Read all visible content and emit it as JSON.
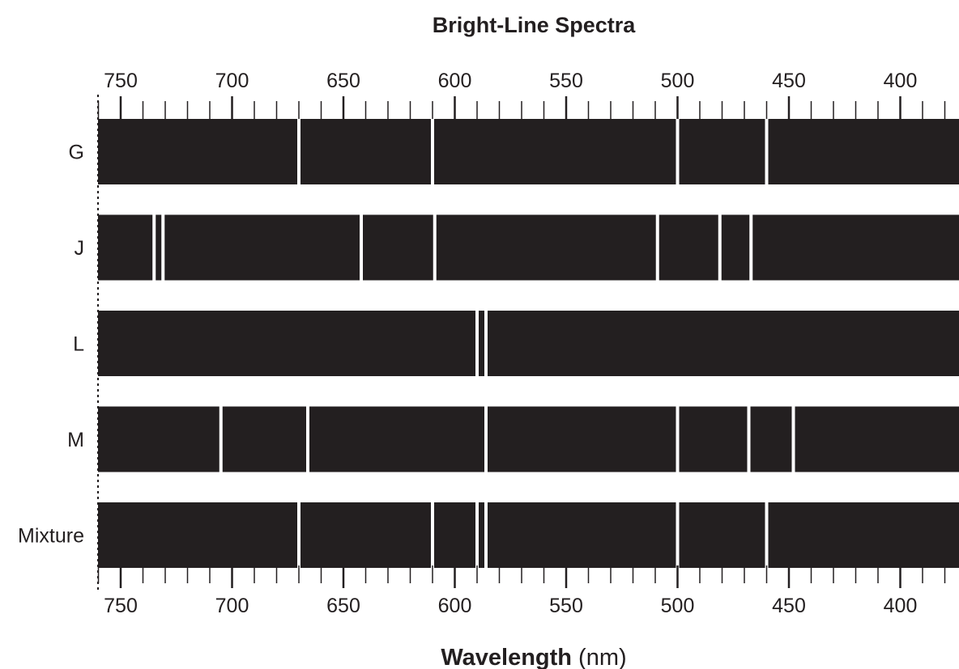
{
  "title": "Bright-Line Spectra",
  "x_axis": {
    "label_bold": "Wavelength",
    "label_unit": " (nm)",
    "major_ticks": [
      750,
      700,
      650,
      600,
      550,
      500,
      450,
      400
    ],
    "minor_tick_step": 10,
    "range": [
      760,
      375
    ],
    "reversed": true
  },
  "spectra": [
    {
      "name": "G",
      "lines": [
        670,
        610,
        500,
        460
      ]
    },
    {
      "name": "J",
      "lines": [
        735,
        731,
        642,
        609,
        509,
        481,
        467
      ]
    },
    {
      "name": "L",
      "lines": [
        590,
        586
      ]
    },
    {
      "name": "M",
      "lines": [
        705,
        666,
        586,
        500,
        468,
        448
      ]
    },
    {
      "name": "Mixture",
      "lines": [
        670,
        610,
        590,
        586,
        500,
        460
      ]
    }
  ],
  "colors": {
    "band": "#231f20",
    "line": "#ffffff",
    "text": "#231f20"
  }
}
